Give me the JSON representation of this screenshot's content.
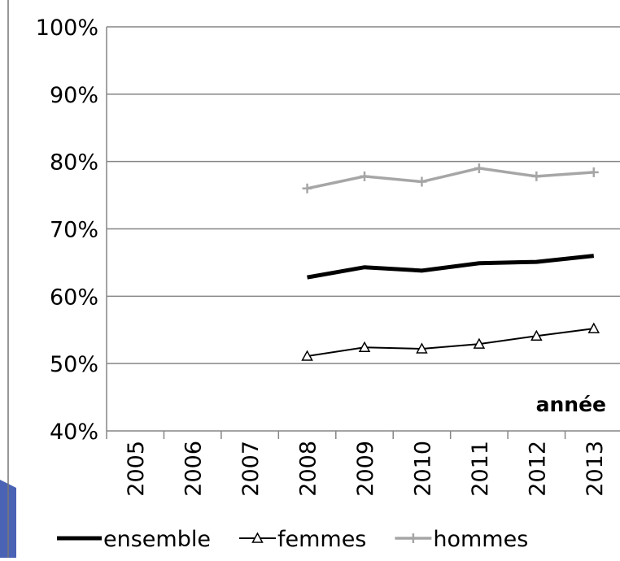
{
  "chart_data": {
    "type": "line",
    "x_label": "année",
    "categories": [
      "2005",
      "2006",
      "2007",
      "2008",
      "2009",
      "2010",
      "2011",
      "2012",
      "2013"
    ],
    "series": [
      {
        "name": "ensemble",
        "color": "#000000",
        "marker": "none",
        "values": [
          null,
          null,
          null,
          62.8,
          64.3,
          63.8,
          64.9,
          65.1,
          66.0
        ]
      },
      {
        "name": "femmes",
        "color": "#000000",
        "marker": "triangle",
        "values": [
          null,
          null,
          null,
          51.1,
          52.4,
          52.2,
          52.9,
          54.1,
          55.2
        ]
      },
      {
        "name": "hommes",
        "color": "#a6a6a6",
        "marker": "plus",
        "values": [
          null,
          null,
          null,
          76.0,
          77.8,
          77.0,
          79.0,
          77.8,
          78.4
        ]
      }
    ],
    "ylim": [
      40,
      100
    ],
    "yticks": [
      {
        "value": 40,
        "label": "40%"
      },
      {
        "value": 50,
        "label": "50%"
      },
      {
        "value": 60,
        "label": "60%"
      },
      {
        "value": 70,
        "label": "70%"
      },
      {
        "value": 80,
        "label": "80%"
      },
      {
        "value": 90,
        "label": "90%"
      },
      {
        "value": 100,
        "label": "100%"
      }
    ],
    "grid": true,
    "legend": "bottom"
  }
}
